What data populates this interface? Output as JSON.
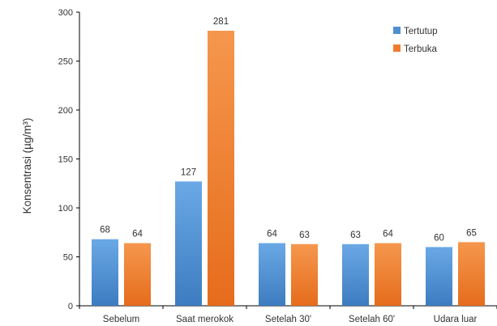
{
  "chart_data": {
    "type": "bar",
    "title": "",
    "xlabel": "",
    "ylabel": "Konsentrasi (µg/m³)",
    "categories": [
      "Sebelum",
      "Saat merokok",
      "Setelah 30'",
      "Setelah 60'",
      "Udara luar"
    ],
    "series": [
      {
        "name": "Tertutup",
        "values": [
          68,
          127,
          64,
          63,
          60
        ],
        "color": "#4E8FD1"
      },
      {
        "name": "Terbuka",
        "values": [
          64,
          281,
          63,
          64,
          65
        ],
        "color": "#F07C2C"
      }
    ],
    "ylim": [
      0,
      300
    ],
    "yticks": [
      0,
      50,
      100,
      150,
      200,
      250,
      300
    ],
    "grid": false,
    "legend_position": "top-right",
    "data_labels": true
  }
}
